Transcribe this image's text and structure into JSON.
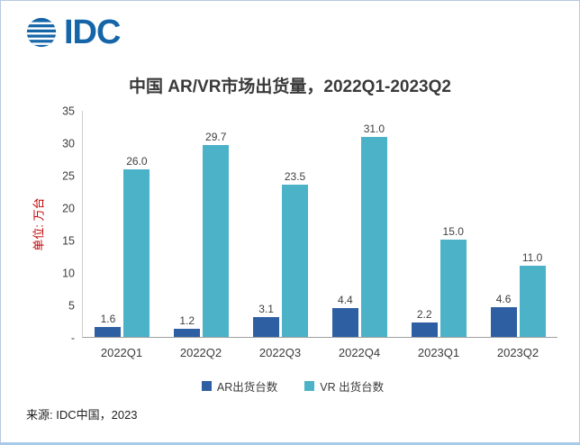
{
  "logo": {
    "text": "IDC"
  },
  "title": "中国 AR/VR市场出货量，2022Q1-2023Q2",
  "source": "来源: IDC中国，2023",
  "chart_data": {
    "type": "bar",
    "title": "中国 AR/VR市场出货量，2022Q1-2023Q2",
    "categories": [
      "2022Q1",
      "2022Q2",
      "2022Q3",
      "2022Q4",
      "2023Q1",
      "2023Q2"
    ],
    "series": [
      {
        "name": "AR出货台数",
        "color": "#2f5fa3",
        "values": [
          1.6,
          1.2,
          3.1,
          4.4,
          2.2,
          4.6
        ]
      },
      {
        "name": "VR 出货台数",
        "color": "#4cb2c8",
        "values": [
          26.0,
          29.7,
          23.5,
          31.0,
          15.0,
          11.0
        ]
      }
    ],
    "xlabel": "",
    "ylabel": "单位: 万台",
    "ylim": [
      0,
      35
    ],
    "yticks": [
      {
        "label": "35",
        "value": 35
      },
      {
        "label": "30",
        "value": 30
      },
      {
        "label": "25",
        "value": 25
      },
      {
        "label": "20",
        "value": 20
      },
      {
        "label": "15",
        "value": 15
      },
      {
        "label": "10",
        "value": 10
      },
      {
        "label": "5",
        "value": 5
      },
      {
        "label": "-",
        "value": 0
      }
    ],
    "grid": false,
    "legend_position": "bottom"
  }
}
